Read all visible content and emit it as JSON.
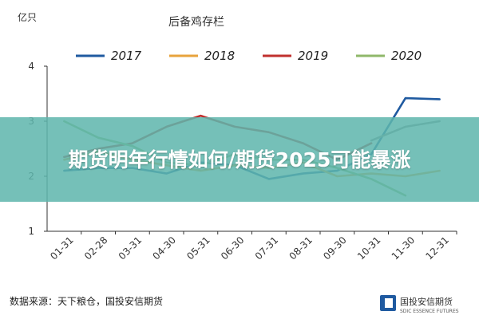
{
  "banner": {
    "headline": "期货明年行情如何/期货2025可能暴涨"
  },
  "source_text": "数据来源：天下粮仓，国投安信期货",
  "logo": {
    "name": "国投安信期货",
    "sub": "SDIC ESSENCE FUTURES"
  },
  "colors": {
    "banner": "#5eb6ac",
    "axis": "#333333"
  },
  "chart_data": {
    "type": "line",
    "title": "后备鸡存栏",
    "unit": "亿只",
    "categories": [
      "01-31",
      "02-28",
      "03-31",
      "04-30",
      "05-31",
      "06-30",
      "07-31",
      "08-31",
      "09-30",
      "10-31",
      "11-30",
      "12-31"
    ],
    "ylim": [
      1,
      4
    ],
    "yticks": [
      1,
      2,
      3,
      4
    ],
    "grid": false,
    "legend_position": "top",
    "series": [
      {
        "name": "2017",
        "color": "#1f5aa0",
        "values": [
          2.1,
          2.15,
          2.15,
          2.05,
          2.25,
          2.2,
          1.95,
          2.05,
          2.1,
          2.4,
          3.42,
          3.4
        ]
      },
      {
        "name": "2018",
        "color": "#e8a33c",
        "values": [
          2.3,
          2.45,
          2.3,
          2.2,
          2.1,
          2.2,
          2.15,
          2.25,
          2.0,
          2.05,
          2.0,
          2.1
        ]
      },
      {
        "name": "2019",
        "color": "#c0302e",
        "values": [
          2.35,
          2.5,
          2.6,
          2.9,
          3.1,
          2.9,
          2.8,
          2.6,
          2.3,
          2.6,
          null,
          null
        ]
      },
      {
        "name": "2020",
        "color": "#8fb86a",
        "values": [
          3.0,
          2.7,
          2.55,
          2.25,
          2.2,
          2.4,
          2.3,
          2.3,
          2.15,
          1.95,
          1.65,
          null
        ]
      },
      {
        "name": "",
        "color": "#8c8c8c",
        "values": [
          null,
          null,
          null,
          null,
          null,
          null,
          null,
          null,
          null,
          2.65,
          2.9,
          3.0
        ]
      }
    ]
  }
}
